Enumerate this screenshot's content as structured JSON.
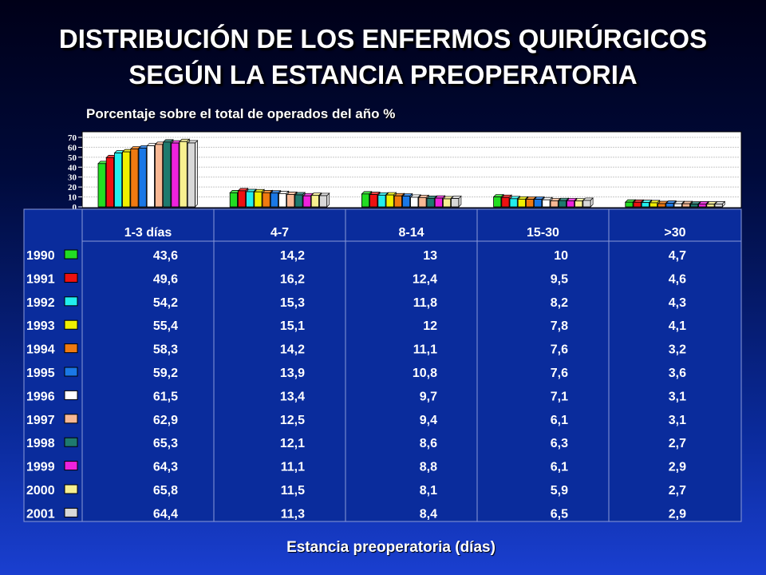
{
  "title_line1": "DISTRIBUCIÓN DE LOS ENFERMOS QUIRÚRGICOS",
  "title_line2": "SEGÚN LA ESTANCIA PREOPERATORIA",
  "chart_data": {
    "type": "bar",
    "subtitle": "Porcentaje sobre el total de operados del año %",
    "xlabel": "Estancia preoperatoria (días)",
    "ylabel": "",
    "ylim": [
      0,
      70
    ],
    "yticks": [
      "0",
      "10",
      "20",
      "30",
      "40",
      "50",
      "60",
      "70"
    ],
    "grid": true,
    "legend": "table-left",
    "categories": [
      "1-3 días",
      "4-7",
      "8-14",
      "15-30",
      ">30"
    ],
    "series": [
      {
        "name": "1990",
        "color": "#22dd22",
        "values": [
          43.6,
          14.2,
          13,
          10,
          4.7
        ],
        "labels": [
          "43,6",
          "14,2",
          "13",
          "10",
          "4,7"
        ]
      },
      {
        "name": "1991",
        "color": "#ee1111",
        "values": [
          49.6,
          16.2,
          12.4,
          9.5,
          4.6
        ],
        "labels": [
          "49,6",
          "16,2",
          "12,4",
          "9,5",
          "4,6"
        ]
      },
      {
        "name": "1992",
        "color": "#22eeee",
        "values": [
          54.2,
          15.3,
          11.8,
          8.2,
          4.3
        ],
        "labels": [
          "54,2",
          "15,3",
          "11,8",
          "8,2",
          "4,3"
        ]
      },
      {
        "name": "1993",
        "color": "#f0f000",
        "values": [
          55.4,
          15.1,
          12,
          7.8,
          4.1
        ],
        "labels": [
          "55,4",
          "15,1",
          "12",
          "7,8",
          "4,1"
        ]
      },
      {
        "name": "1994",
        "color": "#f07a10",
        "values": [
          58.3,
          14.2,
          11.1,
          7.6,
          3.2
        ],
        "labels": [
          "58,3",
          "14,2",
          "11,1",
          "7,6",
          "3,2"
        ]
      },
      {
        "name": "1995",
        "color": "#1a78e6",
        "values": [
          59.2,
          13.9,
          10.8,
          7.6,
          3.6
        ],
        "labels": [
          "59,2",
          "13,9",
          "10,8",
          "7,6",
          "3,6"
        ]
      },
      {
        "name": "1996",
        "color": "#ffffff",
        "values": [
          61.5,
          13.4,
          9.7,
          7.1,
          3.1
        ],
        "labels": [
          "61,5",
          "13,4",
          "9,7",
          "7,1",
          "3,1"
        ]
      },
      {
        "name": "1997",
        "color": "#f8b894",
        "values": [
          62.9,
          12.5,
          9.4,
          6.1,
          3.1
        ],
        "labels": [
          "62,9",
          "12,5",
          "9,4",
          "6,1",
          "3,1"
        ]
      },
      {
        "name": "1998",
        "color": "#1e7a6e",
        "values": [
          65.3,
          12.1,
          8.6,
          6.3,
          2.7
        ],
        "labels": [
          "65,3",
          "12,1",
          "8,6",
          "6,3",
          "2,7"
        ]
      },
      {
        "name": "1999",
        "color": "#ee22dd",
        "values": [
          64.3,
          11.1,
          8.8,
          6.1,
          2.9
        ],
        "labels": [
          "64,3",
          "11,1",
          "8,8",
          "6,1",
          "2,9"
        ]
      },
      {
        "name": "2000",
        "color": "#f8f090",
        "values": [
          65.8,
          11.5,
          8.1,
          5.9,
          2.7
        ],
        "labels": [
          "65,8",
          "11,5",
          "8,1",
          "5,9",
          "2,7"
        ]
      },
      {
        "name": "2001",
        "color": "#d8d8d8",
        "values": [
          64.4,
          11.3,
          8.4,
          6.5,
          2.9
        ],
        "labels": [
          "64,4",
          "11,3",
          "8,4",
          "6,5",
          "2,9"
        ]
      }
    ]
  }
}
